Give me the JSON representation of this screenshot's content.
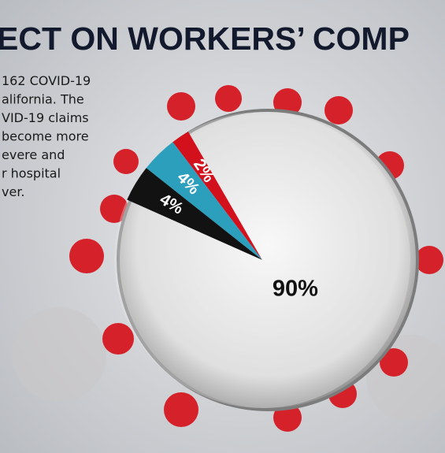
{
  "title": "ECT ON WORKERS’ COMP",
  "body_lines": [
    "162 COVID-19",
    "alifornia. The",
    "VID-19 claims",
    "become more",
    "evere and",
    "r hospital",
    "ver."
  ],
  "chart_data": {
    "type": "pie",
    "values": [
      2,
      4,
      4,
      90
    ],
    "value_labels": [
      "2%",
      "4%",
      "4%",
      "90%"
    ],
    "colors": [
      "#d3111c",
      "#2c9fbd",
      "#121212",
      "#ececec"
    ],
    "label_colors": [
      "#ffffff",
      "#ffffff",
      "#ffffff",
      "#111111"
    ]
  }
}
